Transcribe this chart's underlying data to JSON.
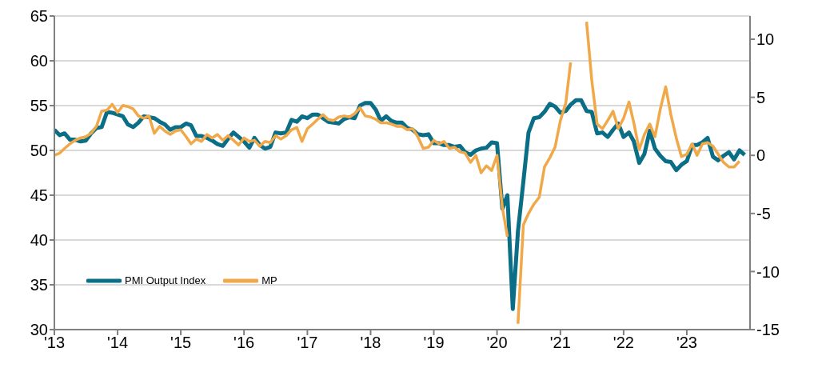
{
  "chart_data": {
    "type": "line",
    "x": [
      "2013-01",
      "2013-02",
      "2013-03",
      "2013-04",
      "2013-05",
      "2013-06",
      "2013-07",
      "2013-08",
      "2013-09",
      "2013-10",
      "2013-11",
      "2013-12",
      "2014-01",
      "2014-02",
      "2014-03",
      "2014-04",
      "2014-05",
      "2014-06",
      "2014-07",
      "2014-08",
      "2014-09",
      "2014-10",
      "2014-11",
      "2014-12",
      "2015-01",
      "2015-02",
      "2015-03",
      "2015-04",
      "2015-05",
      "2015-06",
      "2015-07",
      "2015-08",
      "2015-09",
      "2015-10",
      "2015-11",
      "2015-12",
      "2016-01",
      "2016-02",
      "2016-03",
      "2016-04",
      "2016-05",
      "2016-06",
      "2016-07",
      "2016-08",
      "2016-09",
      "2016-10",
      "2016-11",
      "2016-12",
      "2017-01",
      "2017-02",
      "2017-03",
      "2017-04",
      "2017-05",
      "2017-06",
      "2017-07",
      "2017-08",
      "2017-09",
      "2017-10",
      "2017-11",
      "2017-12",
      "2018-01",
      "2018-02",
      "2018-03",
      "2018-04",
      "2018-05",
      "2018-06",
      "2018-07",
      "2018-08",
      "2018-09",
      "2018-10",
      "2018-11",
      "2018-12",
      "2019-01",
      "2019-02",
      "2019-03",
      "2019-04",
      "2019-05",
      "2019-06",
      "2019-07",
      "2019-08",
      "2019-09",
      "2019-10",
      "2019-11",
      "2019-12",
      "2020-01",
      "2020-02",
      "2020-03",
      "2020-04",
      "2020-05",
      "2020-06",
      "2020-07",
      "2020-08",
      "2020-09",
      "2020-10",
      "2020-11",
      "2020-12",
      "2021-01",
      "2021-02",
      "2021-03",
      "2021-04",
      "2021-05",
      "2021-06",
      "2021-07",
      "2021-08",
      "2021-09",
      "2021-10",
      "2021-11",
      "2021-12",
      "2022-01",
      "2022-02",
      "2022-03",
      "2022-04",
      "2022-05",
      "2022-06",
      "2022-07",
      "2022-08",
      "2022-09",
      "2022-10",
      "2022-11",
      "2022-12",
      "2023-01",
      "2023-02",
      "2023-03",
      "2023-04",
      "2023-05",
      "2023-06",
      "2023-07",
      "2023-08",
      "2023-09",
      "2023-10",
      "2023-11",
      "2023-12"
    ],
    "series": [
      {
        "name": "PMI Output Index",
        "color": "#0b6e87",
        "values": [
          52.3,
          51.7,
          51.9,
          51.2,
          51.2,
          51.0,
          51.1,
          51.9,
          52.5,
          52.6,
          54.3,
          54.2,
          54.0,
          53.8,
          52.9,
          52.6,
          53.1,
          53.8,
          53.7,
          53.6,
          53.2,
          52.9,
          52.3,
          52.6,
          52.6,
          53.0,
          52.8,
          51.6,
          51.6,
          51.4,
          51.1,
          50.7,
          50.5,
          51.3,
          52.0,
          51.5,
          51.0,
          50.3,
          51.4,
          50.6,
          50.2,
          50.4,
          52.0,
          51.9,
          52.0,
          53.4,
          53.2,
          53.8,
          53.6,
          54.0,
          54.0,
          53.6,
          53.2,
          53.1,
          53.0,
          53.5,
          53.7,
          53.6,
          55.0,
          55.3,
          55.3,
          54.5,
          53.3,
          53.8,
          53.3,
          53.1,
          53.1,
          52.5,
          52.3,
          51.8,
          51.7,
          51.8,
          50.8,
          50.8,
          50.6,
          50.6,
          50.4,
          50.5,
          49.8,
          49.5,
          50.0,
          50.2,
          50.3,
          50.9,
          50.8,
          43.5,
          45.0,
          32.3,
          41.0,
          46.5,
          52.0,
          53.6,
          53.7,
          54.3,
          55.2,
          54.9,
          54.2,
          54.4,
          55.1,
          55.6,
          55.6,
          54.4,
          54.3,
          51.9,
          52.0,
          51.5,
          52.3,
          53.0,
          51.5,
          52.0,
          51.0,
          48.6,
          49.6,
          52.2,
          50.2,
          49.4,
          48.8,
          48.7,
          47.8,
          48.4,
          48.8,
          50.6,
          50.6,
          50.9,
          51.4,
          49.3,
          48.9,
          49.4,
          49.8,
          49.0,
          50.0,
          49.5
        ]
      },
      {
        "name": "MP",
        "color": "#f0a848",
        "axis": "y2",
        "values": [
          0.0,
          0.2,
          0.6,
          1.0,
          1.3,
          1.5,
          1.6,
          1.9,
          2.5,
          3.8,
          3.9,
          4.4,
          3.7,
          4.3,
          4.2,
          4.0,
          3.4,
          3.2,
          3.4,
          1.9,
          2.5,
          2.1,
          1.8,
          2.1,
          2.2,
          1.6,
          1.0,
          1.4,
          1.2,
          1.8,
          1.5,
          1.8,
          1.3,
          1.7,
          1.3,
          0.9,
          1.5,
          1.2,
          1.3,
          0.8,
          1.2,
          1.1,
          1.7,
          1.4,
          1.7,
          2.2,
          2.4,
          1.2,
          2.3,
          2.7,
          3.1,
          3.5,
          3.1,
          3.0,
          3.3,
          3.4,
          3.3,
          3.6,
          4.1,
          3.4,
          3.3,
          3.1,
          2.8,
          2.8,
          2.7,
          2.5,
          2.5,
          2.2,
          2.3,
          1.6,
          0.6,
          0.7,
          1.3,
          1.0,
          1.2,
          0.6,
          0.7,
          0.3,
          0.2,
          -0.6,
          0.0,
          -1.5,
          -0.9,
          -1.3,
          0.0,
          -4.5,
          -7.0,
          null,
          -14.5,
          -6.0,
          -5.0,
          -4.2,
          -3.6,
          -1.0,
          -0.2,
          0.7,
          3.0,
          4.5,
          8.0,
          null,
          null,
          11.5,
          6.5,
          2.7,
          2.3,
          3.0,
          3.8,
          2.3,
          3.2,
          4.6,
          2.8,
          0.5,
          1.8,
          2.7,
          1.6,
          4.0,
          5.9,
          3.5,
          1.5,
          -0.1,
          0.1,
          1.0,
          0.0,
          1.0,
          1.1,
          0.8,
          0.1,
          -0.6,
          -1.0,
          -1.0,
          -0.5,
          null
        ]
      }
    ],
    "xlim": [
      "2013-01",
      "2024-01"
    ],
    "xticks": [
      {
        "value": "2013",
        "label": "'13"
      },
      {
        "value": "2014",
        "label": "'14"
      },
      {
        "value": "2015",
        "label": "'15"
      },
      {
        "value": "2016",
        "label": "'16"
      },
      {
        "value": "2017",
        "label": "'17"
      },
      {
        "value": "2018",
        "label": "'18"
      },
      {
        "value": "2019",
        "label": "'19"
      },
      {
        "value": "2020",
        "label": "'20"
      },
      {
        "value": "2021",
        "label": "'21"
      },
      {
        "value": "2022",
        "label": "'22"
      },
      {
        "value": "2023",
        "label": "'23"
      }
    ],
    "ylim": [
      30,
      65
    ],
    "yticks": [
      30,
      35,
      40,
      45,
      50,
      55,
      60,
      65
    ],
    "y2lim": [
      -15,
      12
    ],
    "y2ticks": [
      -15,
      -10,
      -5,
      0,
      5,
      10
    ],
    "grid": "y",
    "legend": "bottom left",
    "marker": "none",
    "line_style": "solid"
  }
}
